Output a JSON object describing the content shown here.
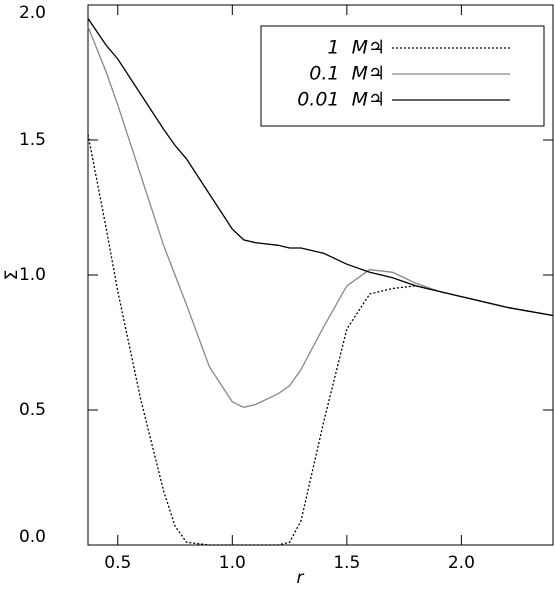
{
  "chart_data": {
    "type": "line",
    "x_label": "r",
    "y_label": "Σ",
    "x": [
      0.37,
      0.45,
      0.5,
      0.6,
      0.7,
      0.75,
      0.8,
      0.9,
      1.0,
      1.05,
      1.1,
      1.2,
      1.25,
      1.3,
      1.4,
      1.5,
      1.6,
      1.7,
      1.8,
      1.9,
      2.0,
      2.2,
      2.4
    ],
    "series": [
      {
        "name": "1  M♃",
        "color": "#000000",
        "line_style": "dotted",
        "values": [
          1.52,
          1.17,
          0.94,
          0.54,
          0.2,
          0.07,
          0.01,
          0,
          0,
          0,
          0,
          0,
          0.01,
          0.09,
          0.46,
          0.8,
          0.93,
          0.95,
          0.96,
          0.94,
          0.92,
          0.88,
          0.85
        ]
      },
      {
        "name": "0.1  M♃",
        "color": "#888888",
        "line_style": "solid",
        "values": [
          1.92,
          1.75,
          1.63,
          1.37,
          1.11,
          1.0,
          0.89,
          0.66,
          0.53,
          0.51,
          0.52,
          0.56,
          0.59,
          0.65,
          0.81,
          0.96,
          1.02,
          1.01,
          0.97,
          0.94,
          0.92,
          0.88,
          0.85
        ]
      },
      {
        "name": "0.01  M♃",
        "color": "#000000",
        "line_style": "solid",
        "values": [
          1.95,
          1.85,
          1.8,
          1.67,
          1.54,
          1.48,
          1.43,
          1.3,
          1.17,
          1.13,
          1.12,
          1.11,
          1.1,
          1.1,
          1.08,
          1.04,
          1.01,
          0.99,
          0.96,
          0.94,
          0.92,
          0.88,
          0.85
        ]
      }
    ],
    "xlim": [
      0.37,
      2.4
    ],
    "xticks": [
      {
        "value": 0.5,
        "label": "0.5"
      },
      {
        "value": 1.0,
        "label": "1.0"
      },
      {
        "value": 1.5,
        "label": "1.5"
      },
      {
        "value": 2.0,
        "label": "2.0"
      }
    ],
    "ylim": [
      0,
      2
    ],
    "yticks": [
      {
        "value": 0,
        "label": "0.0"
      },
      {
        "value": 0.5,
        "label": "0.5"
      },
      {
        "value": 1.0,
        "label": "1.0"
      },
      {
        "value": 1.5,
        "label": "1.5"
      },
      {
        "value": 2.0,
        "label": "2.0"
      }
    ],
    "legend": "upper right"
  }
}
